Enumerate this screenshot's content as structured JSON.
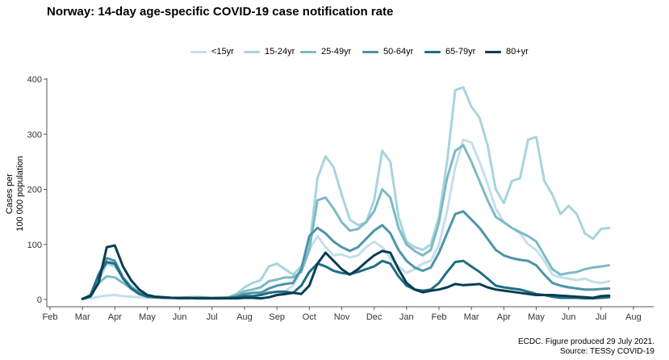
{
  "header": {
    "title": "Norway: 14-day age-specific COVID-19 case notification rate"
  },
  "footer": {
    "line1": "ECDC. Figure produced 29 July 2021.",
    "line2": "Source: TESSy COVID-19"
  },
  "chart_data": {
    "type": "line",
    "title": "Norway: 14-day age-specific COVID-19 case notification rate",
    "ylabel_lines": [
      "Cases per",
      "100 000 population"
    ],
    "xlabel": "",
    "ylim": [
      0,
      400
    ],
    "yticks": [
      0,
      100,
      200,
      300,
      400
    ],
    "xlim": [
      0,
      18.25
    ],
    "month_ticks": [
      "Feb",
      "Mar",
      "Apr",
      "May",
      "Jun",
      "Jul",
      "Aug",
      "Sep",
      "Oct",
      "Nov",
      "Dec",
      "Jan",
      "Feb",
      "Mar",
      "Apr",
      "May",
      "Jun",
      "Jul",
      "Aug"
    ],
    "grid": false,
    "legend_position": "top",
    "x": [
      1.0,
      1.25,
      1.5,
      1.75,
      2.0,
      2.25,
      2.5,
      2.75,
      3.0,
      3.25,
      3.5,
      3.75,
      4.0,
      4.25,
      4.5,
      4.75,
      5.0,
      5.25,
      5.5,
      5.75,
      6.0,
      6.25,
      6.5,
      6.75,
      7.0,
      7.25,
      7.5,
      7.75,
      8.0,
      8.25,
      8.5,
      8.75,
      9.0,
      9.25,
      9.5,
      9.75,
      10.0,
      10.25,
      10.5,
      10.75,
      11.0,
      11.25,
      11.5,
      11.75,
      12.0,
      12.25,
      12.5,
      12.75,
      13.0,
      13.25,
      13.5,
      13.75,
      14.0,
      14.25,
      14.5,
      14.75,
      15.0,
      15.25,
      15.5,
      15.75,
      16.0,
      16.25,
      16.5,
      16.75,
      17.0,
      17.25
    ],
    "series": [
      {
        "name": "<15yr",
        "color": "#c5dfe9",
        "values": [
          1,
          2,
          5,
          7,
          8,
          6,
          5,
          4,
          3,
          3,
          3,
          2,
          2,
          3,
          2,
          2,
          2,
          3,
          3,
          5,
          8,
          12,
          14,
          13,
          12,
          15,
          25,
          55,
          90,
          115,
          95,
          80,
          82,
          76,
          80,
          95,
          105,
          95,
          75,
          60,
          48,
          55,
          65,
          70,
          100,
          160,
          240,
          290,
          285,
          250,
          210,
          165,
          140,
          130,
          120,
          100,
          90,
          70,
          45,
          40,
          38,
          35,
          38,
          32,
          30,
          33
        ]
      },
      {
        "name": "15-24yr",
        "color": "#a8d4de",
        "values": [
          1,
          5,
          35,
          65,
          60,
          40,
          25,
          12,
          8,
          5,
          4,
          3,
          3,
          4,
          5,
          4,
          3,
          4,
          4,
          10,
          22,
          30,
          35,
          60,
          65,
          55,
          45,
          60,
          95,
          220,
          260,
          240,
          190,
          145,
          135,
          140,
          180,
          270,
          250,
          150,
          105,
          95,
          90,
          100,
          150,
          250,
          380,
          385,
          350,
          330,
          280,
          200,
          175,
          215,
          220,
          290,
          295,
          215,
          190,
          155,
          170,
          155,
          120,
          110,
          128,
          130
        ]
      },
      {
        "name": "25-49yr",
        "color": "#7cbac6",
        "values": [
          1,
          5,
          30,
          42,
          40,
          30,
          20,
          10,
          6,
          4,
          3,
          3,
          3,
          3,
          3,
          3,
          3,
          3,
          4,
          8,
          15,
          18,
          22,
          33,
          36,
          40,
          40,
          50,
          90,
          180,
          185,
          165,
          140,
          125,
          128,
          140,
          160,
          200,
          185,
          130,
          100,
          88,
          80,
          90,
          140,
          220,
          270,
          280,
          250,
          215,
          180,
          150,
          140,
          130,
          122,
          115,
          105,
          80,
          55,
          45,
          48,
          50,
          55,
          58,
          60,
          62
        ]
      },
      {
        "name": "50-64yr",
        "color": "#4d95a8",
        "values": [
          1,
          6,
          45,
          75,
          70,
          40,
          22,
          12,
          7,
          5,
          4,
          3,
          3,
          3,
          3,
          3,
          3,
          3,
          3,
          5,
          10,
          12,
          12,
          20,
          25,
          28,
          30,
          55,
          115,
          130,
          120,
          105,
          95,
          88,
          95,
          110,
          125,
          135,
          120,
          90,
          70,
          58,
          52,
          58,
          85,
          120,
          155,
          160,
          145,
          130,
          110,
          90,
          80,
          75,
          72,
          70,
          62,
          45,
          30,
          25,
          22,
          20,
          18,
          18,
          19,
          20
        ]
      },
      {
        "name": "65-79yr",
        "color": "#1f6e84",
        "values": [
          1,
          8,
          45,
          68,
          65,
          38,
          20,
          10,
          5,
          4,
          3,
          3,
          2,
          2,
          3,
          3,
          2,
          2,
          3,
          4,
          6,
          6,
          8,
          12,
          14,
          14,
          12,
          25,
          50,
          65,
          60,
          52,
          48,
          46,
          50,
          55,
          60,
          70,
          65,
          42,
          25,
          18,
          16,
          18,
          30,
          50,
          68,
          70,
          60,
          50,
          38,
          25,
          22,
          20,
          18,
          14,
          10,
          8,
          5,
          3,
          3,
          3,
          2,
          2,
          3,
          4
        ]
      },
      {
        "name": "80+yr",
        "color": "#0b3d52",
        "values": [
          1,
          6,
          30,
          95,
          98,
          60,
          35,
          18,
          8,
          5,
          4,
          3,
          3,
          3,
          2,
          2,
          2,
          2,
          2,
          2,
          3,
          3,
          2,
          4,
          8,
          10,
          12,
          10,
          25,
          65,
          85,
          70,
          55,
          45,
          55,
          68,
          80,
          88,
          85,
          55,
          30,
          18,
          13,
          16,
          18,
          22,
          28,
          26,
          27,
          28,
          22,
          18,
          16,
          14,
          12,
          10,
          8,
          8,
          8,
          7,
          6,
          5,
          4,
          3,
          6,
          7
        ]
      }
    ]
  }
}
